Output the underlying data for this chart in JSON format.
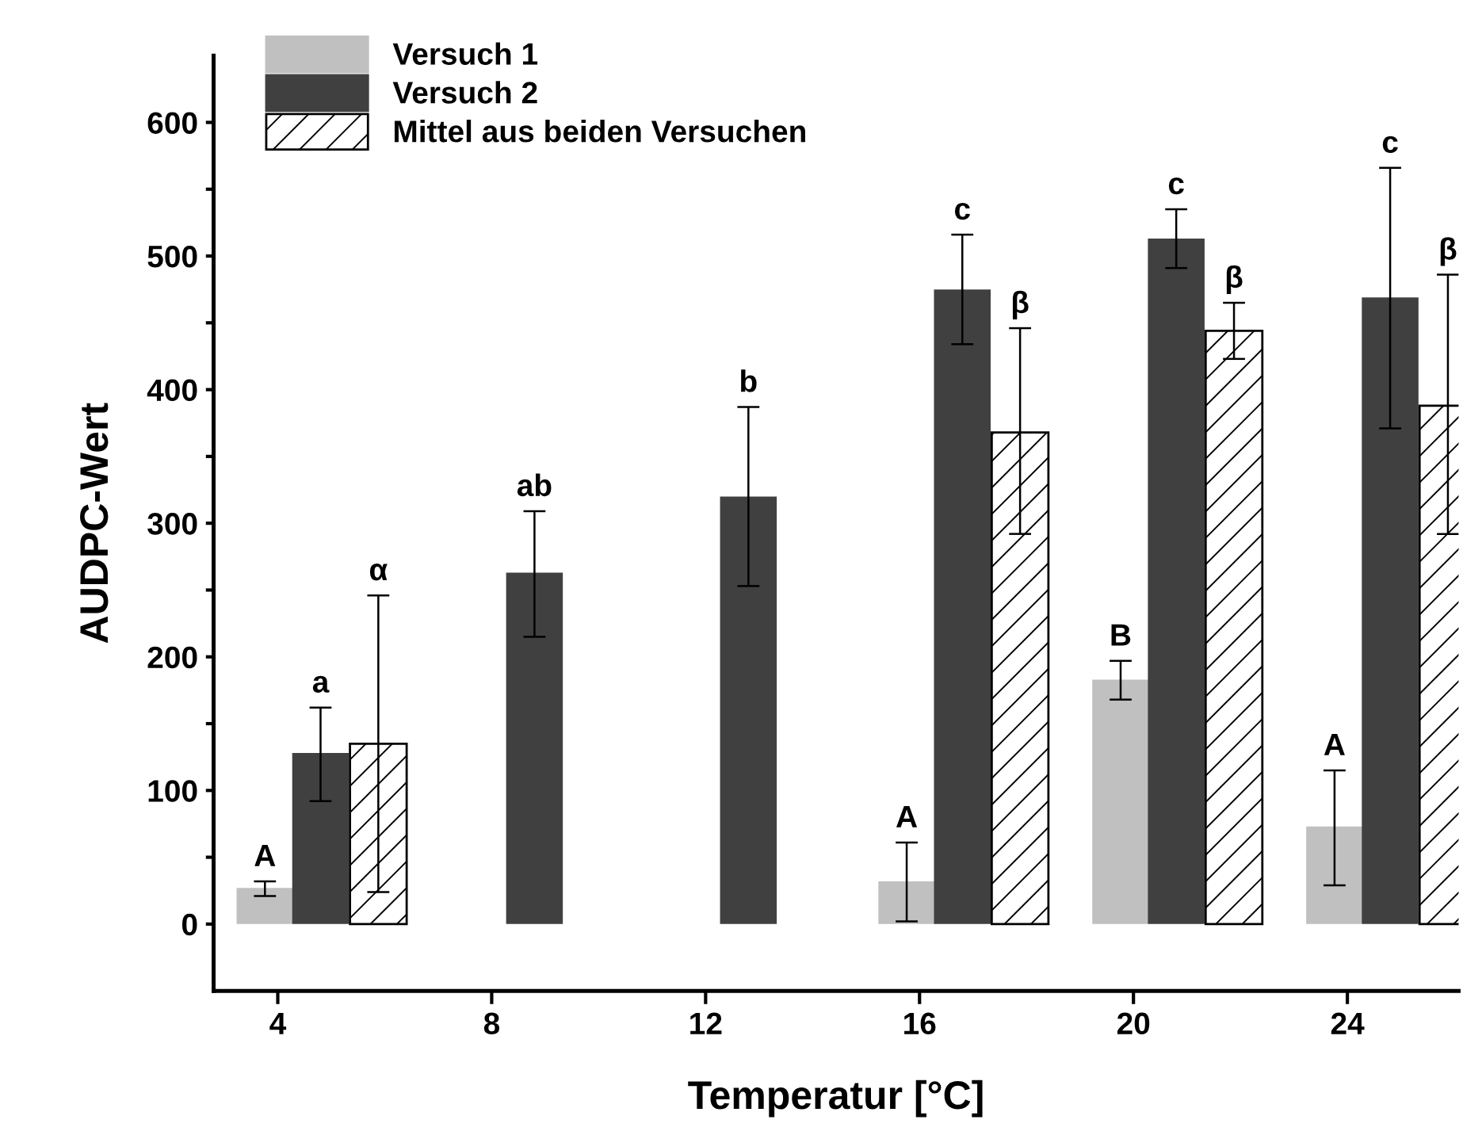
{
  "chart_data": {
    "type": "bar",
    "xlabel": "Temperatur [°C]",
    "ylabel": "AUDPC-Wert",
    "categories": [
      "4",
      "8",
      "12",
      "16",
      "20",
      "24"
    ],
    "series": [
      {
        "name": "Versuch 1",
        "color": "#c0c0c0",
        "values": [
          27,
          null,
          null,
          32,
          183,
          73
        ],
        "errors": [
          [
            21,
            32
          ],
          null,
          null,
          [
            2,
            61
          ],
          [
            168,
            197
          ],
          [
            29,
            115
          ]
        ]
      },
      {
        "name": "Versuch 2",
        "color": "#404040",
        "values": [
          128,
          263,
          320,
          475,
          513,
          469
        ],
        "errors": [
          [
            92,
            162
          ],
          [
            215,
            309
          ],
          [
            253,
            387
          ],
          [
            434,
            516
          ],
          [
            491,
            535
          ],
          [
            371,
            566
          ]
        ]
      },
      {
        "name": "Mittel aus beiden Versuchen",
        "color": "#ffffff",
        "values": [
          135,
          null,
          null,
          368,
          444,
          388
        ],
        "errors": [
          [
            24,
            246
          ],
          null,
          null,
          [
            292,
            446
          ],
          [
            423,
            465
          ],
          [
            292,
            486
          ]
        ]
      }
    ],
    "annotations": [
      "A",
      "a",
      "α",
      "ab",
      "b",
      "A",
      "c",
      "β",
      "B",
      "c",
      "β",
      "A",
      "c",
      "β"
    ],
    "ylim": [
      -50,
      650
    ],
    "yticks": [
      0,
      {
        "value": 50,
        "label": null
      },
      100,
      {
        "value": 150,
        "label": null
      },
      200,
      {
        "value": 250,
        "label": null
      },
      300,
      {
        "value": 350,
        "label": null
      },
      400,
      {
        "value": 450,
        "label": null
      },
      500,
      {
        "value": 550,
        "label": null
      },
      600
    ],
    "grid": false,
    "legend": "top left"
  }
}
